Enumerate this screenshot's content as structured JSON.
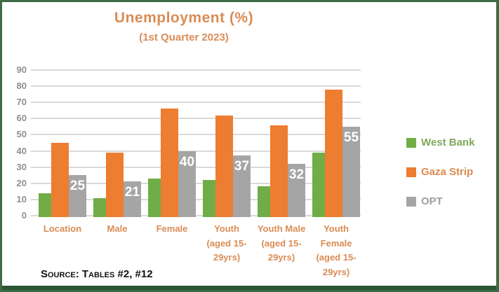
{
  "frame": {
    "border_color": "#3E6B44",
    "bottom_bar_color": "#2B5634"
  },
  "header": {
    "title": "Unemployment (%)",
    "subtitle": "(1st Quarter 2023)",
    "title_color": "#D98C55"
  },
  "source_note": "Source: Tables #2, #12",
  "y_axis": {
    "tick_labels": [
      "0",
      "10",
      "20",
      "30",
      "40",
      "50",
      "60",
      "70",
      "80",
      "90"
    ],
    "label_color": "#8F8F8F"
  },
  "category_axis": {
    "label_color": "#D98C55",
    "display_labels": [
      "Location",
      "Male",
      "Female",
      "Youth\n(aged 15-\n29yrs)",
      "Youth Male\n(aged 15-\n29yrs)",
      "Youth\nFemale\n(aged 15-\n29yrs)"
    ]
  },
  "chart_data": {
    "type": "bar",
    "title": "Unemployment (%)",
    "subtitle": "(1st Quarter 2023)",
    "categories": [
      "Location",
      "Male",
      "Female",
      "Youth (aged 15-29yrs)",
      "Youth Male (aged 15-29yrs)",
      "Youth Female (aged 15-29yrs)"
    ],
    "series": [
      {
        "name": "West Bank",
        "color": "#70AD47",
        "values": [
          14,
          11,
          23,
          22,
          18,
          39
        ],
        "data_labels": false
      },
      {
        "name": "Gaza Strip",
        "color": "#ED7D31",
        "values": [
          45,
          39,
          66,
          62,
          56,
          78
        ],
        "data_labels": false
      },
      {
        "name": "OPT",
        "color": "#A5A5A5",
        "values": [
          25,
          21,
          40,
          37,
          32,
          55
        ],
        "data_labels": true,
        "data_label_color": "#FFFFFF",
        "shown_labels": [
          "25",
          "21",
          "40",
          "37",
          "32",
          "55"
        ]
      }
    ],
    "ylim": [
      0,
      90
    ],
    "ytick_step": 10,
    "grid": true,
    "gridline_color": "#D9D9D9",
    "legend_position": "right"
  },
  "legend": {
    "items": [
      {
        "label": "West Bank",
        "swatch_color": "#70AD47",
        "label_color": "#7FA85A"
      },
      {
        "label": "Gaza Strip",
        "swatch_color": "#ED7D31",
        "label_color": "#DC8A50"
      },
      {
        "label": "OPT",
        "swatch_color": "#A5A5A5",
        "label_color": "#9E9E9E"
      }
    ]
  }
}
